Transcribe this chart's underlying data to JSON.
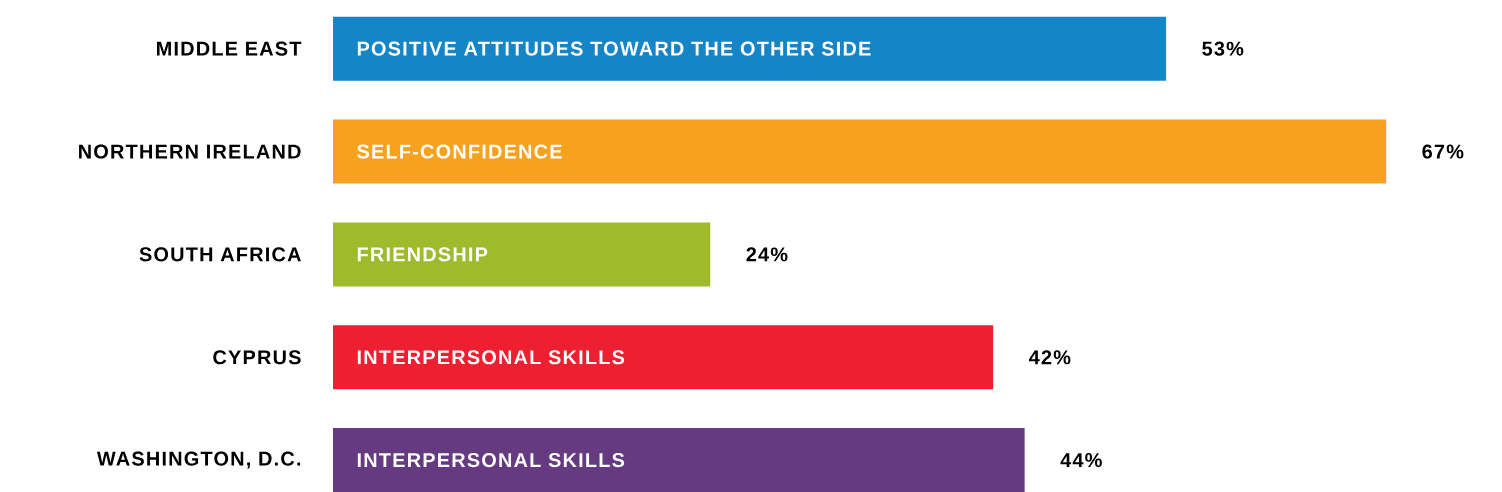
{
  "chart_data": {
    "type": "bar",
    "orientation": "horizontal",
    "categories": [
      "MIDDLE EAST",
      "NORTHERN IRELAND",
      "SOUTH AFRICA",
      "CYPRUS",
      "WASHINGTON, D.C."
    ],
    "values": [
      53,
      67,
      24,
      42,
      44
    ],
    "colors": [
      "#1685c8",
      "#f7a21f",
      "#a0ba2e",
      "#ee1f30",
      "#653a80"
    ],
    "value_labels": [
      "53%",
      "67%",
      "24%",
      "42%",
      "44%"
    ],
    "annotations": [
      "POSITIVE ATTITUDES TOWARD THE OTHER SIDE",
      "SELF-CONFIDENCE",
      "FRIENDSHIP",
      "INTERPERSONAL SKILLS",
      "INTERPERSONAL SKILLS"
    ]
  }
}
